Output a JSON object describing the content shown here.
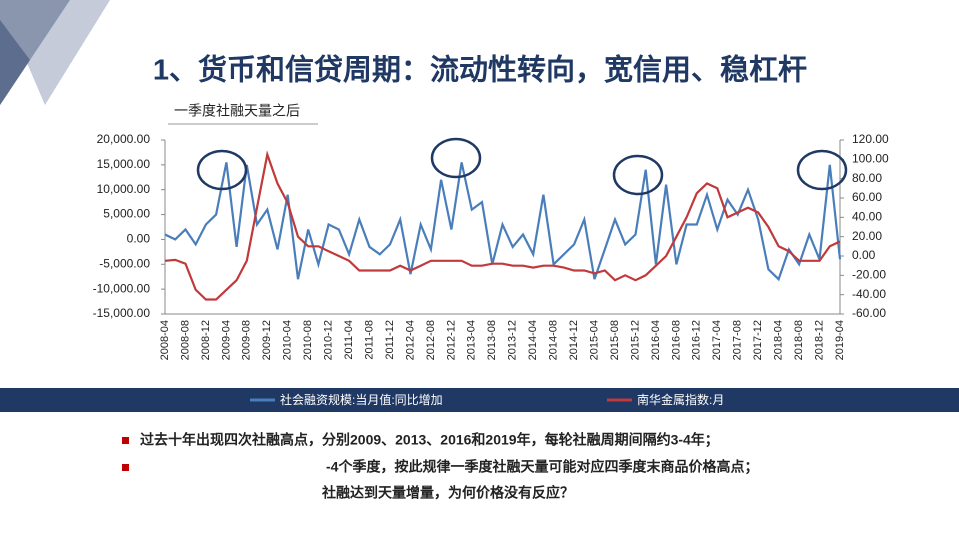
{
  "title": "1、货币和信贷周期：流动性转向，宽信用、稳杠杆",
  "subtitle": "一季度社融天量之后",
  "bullets": [
    "过去十年出现四次社融高点，分别2009、2013、2016和2019年，每轮社融周期间隔约3-4年；",
    "-4个季度，按此规律一季度社融天量可能对应四季度末商品价格高点；",
    "社融达到天量增量，为何价格没有反应？"
  ],
  "chart_data": {
    "type": "line",
    "categories": [
      "2008-04",
      null,
      "2008-08",
      null,
      "2008-12",
      null,
      "2009-04",
      null,
      "2009-08",
      null,
      "2009-12",
      null,
      "2010-04",
      null,
      "2010-08",
      null,
      "2010-12",
      null,
      "2011-04",
      null,
      "2011-08",
      null,
      "2011-12",
      null,
      "2012-04",
      null,
      "2012-08",
      null,
      "2012-12",
      null,
      "2013-04",
      null,
      "2013-08",
      null,
      "2013-12",
      null,
      "2014-04",
      null,
      "2014-08",
      null,
      "2014-12",
      null,
      "2015-04",
      null,
      "2015-08",
      null,
      "2015-12",
      null,
      "2016-04",
      null,
      "2016-08",
      null,
      "2016-12",
      null,
      "2017-04",
      null,
      "2017-08",
      null,
      "2017-12",
      null,
      "2018-04",
      null,
      "2018-08",
      null,
      "2018-12",
      null,
      "2019-04"
    ],
    "series": [
      {
        "name": "社会融资规模:当月值:同比增加",
        "color": "#4a7ebb",
        "values": [
          1000,
          0,
          2000,
          -1000,
          3000,
          5000,
          15500,
          -1500,
          15000,
          3000,
          6000,
          -2000,
          9000,
          -8000,
          2000,
          -5000,
          3000,
          2000,
          -3000,
          4000,
          -1500,
          -3000,
          -1000,
          4000,
          -7000,
          3000,
          -2000,
          12000,
          2000,
          15500,
          6000,
          7500,
          -5000,
          3000,
          -1500,
          1000,
          -3000,
          9000,
          -5000,
          -3000,
          -1000,
          4000,
          -8000,
          -2000,
          4000,
          -1000,
          1000,
          14000,
          -5000,
          11000,
          -5000,
          3000,
          3000,
          9000,
          2000,
          8000,
          5000,
          10000,
          4000,
          -6000,
          -8000,
          -2000,
          -5000,
          1000,
          -4000,
          15000,
          -4000
        ]
      },
      {
        "name": "南华金属指数:月",
        "color": "#c0393b",
        "axis": "y2",
        "values": [
          -5,
          -4,
          -8,
          -35,
          -45,
          -45,
          -35,
          -25,
          -5,
          50,
          105,
          75,
          55,
          20,
          10,
          10,
          5,
          0,
          -5,
          -15,
          -15,
          -15,
          -15,
          -10,
          -15,
          -10,
          -5,
          -5,
          -5,
          -5,
          -10,
          -10,
          -8,
          -8,
          -10,
          -10,
          -12,
          -10,
          -10,
          -12,
          -15,
          -15,
          -18,
          -15,
          -25,
          -20,
          -25,
          -20,
          -10,
          0,
          20,
          40,
          65,
          75,
          70,
          40,
          45,
          50,
          45,
          30,
          10,
          5,
          -5,
          -5,
          -5,
          10,
          15
        ]
      }
    ],
    "ylim": [
      -15000,
      20000
    ],
    "yticks": [
      {
        "value": -15000,
        "label": "-15,000.00"
      },
      {
        "value": -10000,
        "label": "-10,000.00"
      },
      {
        "value": -5000,
        "label": "-5,000.00"
      },
      {
        "value": 0,
        "label": "0.00"
      },
      {
        "value": 5000,
        "label": "5,000.00"
      },
      {
        "value": 10000,
        "label": "10,000.00"
      },
      {
        "value": 15000,
        "label": "15,000.00"
      },
      {
        "value": 20000,
        "label": "20,000.00"
      }
    ],
    "y2lim": [
      -60,
      120
    ],
    "y2ticks": [
      {
        "value": -60,
        "label": "-60.00"
      },
      {
        "value": -40,
        "label": "-40.00"
      },
      {
        "value": -20,
        "label": "-20.00"
      },
      {
        "value": 0,
        "label": "0.00"
      },
      {
        "value": 20,
        "label": "20.00"
      },
      {
        "value": 40,
        "label": "40.00"
      },
      {
        "value": 60,
        "label": "60.00"
      },
      {
        "value": 80,
        "label": "80.00"
      },
      {
        "value": 100,
        "label": "100.00"
      },
      {
        "value": 120,
        "label": "120.00"
      }
    ],
    "grid": false
  }
}
